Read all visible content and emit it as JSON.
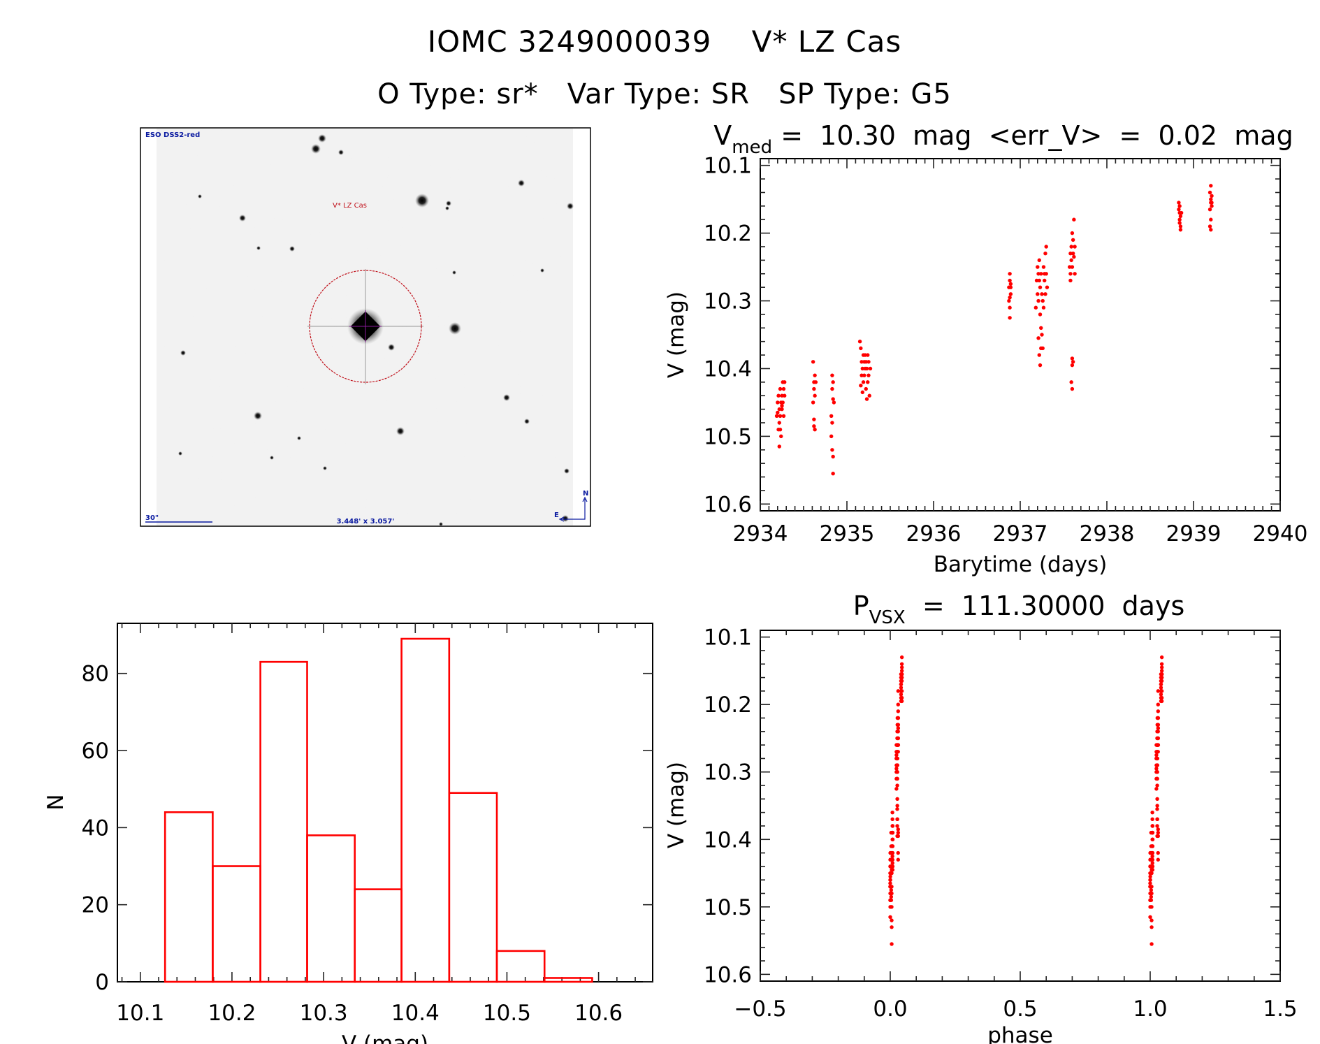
{
  "header": {
    "title": "IOMC 3249000039    V* LZ Cas",
    "subtitle": "O Type: sr*   Var Type: SR   SP Type: G5"
  },
  "finder_chart": {
    "survey_label": "ESO DSS2-red",
    "target_label": "V* LZ Cas",
    "scale_label": "30\"",
    "field_size_label": "3.448' x 3.057'",
    "north_label": "N",
    "east_label": "E",
    "colors": {
      "overlay_red": "#c0101a",
      "overlay_blue": "#0a1aa0"
    }
  },
  "light_curve": {
    "title_main": "V",
    "title_sub": "med",
    "title_rest": " =  10.30  mag  <err_V>  =  0.02  mag",
    "xlabel": "Barytime (days)",
    "ylabel": "V (mag)"
  },
  "histogram": {
    "xlabel": "V (mag)",
    "ylabel": "N"
  },
  "phase_plot": {
    "title_main": "P",
    "title_sub": "VSX",
    "title_rest": "  =  111.30000  days",
    "xlabel": "phase",
    "ylabel": "V (mag)"
  },
  "chart_data": [
    {
      "type": "scatter",
      "name": "light_curve",
      "title": "V_med = 10.30 mag <err_V> = 0.02 mag",
      "xlabel": "Barytime (days)",
      "ylabel": "V (mag)",
      "xlim": [
        2934,
        2940
      ],
      "ylim": [
        10.09,
        10.61
      ],
      "y_inverted": true,
      "x_ticks": [
        "2934",
        "2935",
        "2936",
        "2937",
        "2938",
        "2939",
        "2940"
      ],
      "y_ticks": [
        "10.1",
        "10.2",
        "10.3",
        "10.4",
        "10.5",
        "10.6"
      ],
      "grid": false,
      "marker_color": "#ff0000",
      "points": [
        [
          2934.19,
          10.47
        ],
        [
          2934.2,
          10.45
        ],
        [
          2934.21,
          10.49
        ],
        [
          2934.21,
          10.44
        ],
        [
          2934.22,
          10.46
        ],
        [
          2934.22,
          10.48
        ],
        [
          2934.23,
          10.43
        ],
        [
          2934.23,
          10.47
        ],
        [
          2934.24,
          10.45
        ],
        [
          2934.24,
          10.5
        ],
        [
          2934.25,
          10.44
        ],
        [
          2934.25,
          10.46
        ],
        [
          2934.26,
          10.42
        ],
        [
          2934.26,
          10.45
        ],
        [
          2934.27,
          10.43
        ],
        [
          2934.27,
          10.47
        ],
        [
          2934.28,
          10.44
        ],
        [
          2934.28,
          10.42
        ],
        [
          2934.22,
          10.515
        ],
        [
          2934.23,
          10.49
        ],
        [
          2934.2,
          10.465
        ],
        [
          2934.25,
          10.455
        ],
        [
          2934.61,
          10.39
        ],
        [
          2934.62,
          10.42
        ],
        [
          2934.62,
          10.43
        ],
        [
          2934.63,
          10.41
        ],
        [
          2934.63,
          10.44
        ],
        [
          2934.61,
          10.45
        ],
        [
          2934.62,
          10.475
        ],
        [
          2934.62,
          10.485
        ],
        [
          2934.63,
          10.49
        ],
        [
          2934.64,
          10.42
        ],
        [
          2934.83,
          10.41
        ],
        [
          2934.84,
          10.42
        ],
        [
          2934.83,
          10.43
        ],
        [
          2934.84,
          10.445
        ],
        [
          2934.82,
          10.47
        ],
        [
          2934.83,
          10.48
        ],
        [
          2934.82,
          10.5
        ],
        [
          2934.83,
          10.52
        ],
        [
          2934.84,
          10.53
        ],
        [
          2934.84,
          10.555
        ],
        [
          2934.85,
          10.45
        ],
        [
          2935.15,
          10.36
        ],
        [
          2935.16,
          10.37
        ],
        [
          2935.17,
          10.39
        ],
        [
          2935.17,
          10.41
        ],
        [
          2935.18,
          10.4
        ],
        [
          2935.19,
          10.38
        ],
        [
          2935.19,
          10.42
        ],
        [
          2935.2,
          10.39
        ],
        [
          2935.2,
          10.41
        ],
        [
          2935.21,
          10.4
        ],
        [
          2935.21,
          10.38
        ],
        [
          2935.22,
          10.43
        ],
        [
          2935.22,
          10.39
        ],
        [
          2935.23,
          10.4
        ],
        [
          2935.24,
          10.38
        ],
        [
          2935.24,
          10.42
        ],
        [
          2935.25,
          10.39
        ],
        [
          2935.25,
          10.41
        ],
        [
          2935.26,
          10.44
        ],
        [
          2935.27,
          10.4
        ],
        [
          2935.18,
          10.435
        ],
        [
          2935.23,
          10.445
        ],
        [
          2935.16,
          10.425
        ],
        [
          2936.87,
          10.28
        ],
        [
          2936.88,
          10.26
        ],
        [
          2936.88,
          10.27
        ],
        [
          2936.89,
          10.29
        ],
        [
          2936.87,
          10.3
        ],
        [
          2936.88,
          10.295
        ],
        [
          2936.89,
          10.28
        ],
        [
          2936.88,
          10.31
        ],
        [
          2936.89,
          10.275
        ],
        [
          2936.88,
          10.325
        ],
        [
          2937.18,
          10.31
        ],
        [
          2937.19,
          10.27
        ],
        [
          2937.2,
          10.25
        ],
        [
          2937.2,
          10.29
        ],
        [
          2937.21,
          10.26
        ],
        [
          2937.21,
          10.3
        ],
        [
          2937.22,
          10.24
        ],
        [
          2937.22,
          10.27
        ],
        [
          2937.23,
          10.28
        ],
        [
          2937.23,
          10.32
        ],
        [
          2937.24,
          10.26
        ],
        [
          2937.24,
          10.34
        ],
        [
          2937.25,
          10.35
        ],
        [
          2937.25,
          10.29
        ],
        [
          2937.26,
          10.3
        ],
        [
          2937.26,
          10.37
        ],
        [
          2937.27,
          10.25
        ],
        [
          2937.27,
          10.31
        ],
        [
          2937.28,
          10.27
        ],
        [
          2937.28,
          10.26
        ],
        [
          2937.29,
          10.29
        ],
        [
          2937.29,
          10.23
        ],
        [
          2937.3,
          10.22
        ],
        [
          2937.3,
          10.26
        ],
        [
          2937.31,
          10.28
        ],
        [
          2937.22,
          10.38
        ],
        [
          2937.23,
          10.395
        ],
        [
          2937.24,
          10.37
        ],
        [
          2937.21,
          10.355
        ],
        [
          2937.57,
          10.25
        ],
        [
          2937.58,
          10.23
        ],
        [
          2937.58,
          10.26
        ],
        [
          2937.59,
          10.22
        ],
        [
          2937.59,
          10.24
        ],
        [
          2937.6,
          10.2
        ],
        [
          2937.6,
          10.25
        ],
        [
          2937.61,
          10.23
        ],
        [
          2937.61,
          10.21
        ],
        [
          2937.62,
          10.235
        ],
        [
          2937.62,
          10.18
        ],
        [
          2937.63,
          10.26
        ],
        [
          2937.63,
          10.22
        ],
        [
          2937.58,
          10.27
        ],
        [
          2937.6,
          10.385
        ],
        [
          2937.61,
          10.39
        ],
        [
          2937.6,
          10.395
        ],
        [
          2937.59,
          10.42
        ],
        [
          2937.6,
          10.43
        ],
        [
          2938.83,
          10.165
        ],
        [
          2938.84,
          10.16
        ],
        [
          2938.84,
          10.17
        ],
        [
          2938.85,
          10.175
        ],
        [
          2938.84,
          10.18
        ],
        [
          2938.85,
          10.19
        ],
        [
          2938.84,
          10.185
        ],
        [
          2938.85,
          10.195
        ],
        [
          2938.83,
          10.155
        ],
        [
          2938.86,
          10.17
        ],
        [
          2939.19,
          10.14
        ],
        [
          2939.2,
          10.13
        ],
        [
          2939.2,
          10.15
        ],
        [
          2939.21,
          10.145
        ],
        [
          2939.2,
          10.155
        ],
        [
          2939.21,
          10.16
        ],
        [
          2939.19,
          10.165
        ],
        [
          2939.2,
          10.18
        ],
        [
          2939.21,
          10.155
        ],
        [
          2939.19,
          10.19
        ],
        [
          2939.2,
          10.195
        ]
      ]
    },
    {
      "type": "bar",
      "name": "histogram",
      "xlabel": "V (mag)",
      "ylabel": "N",
      "xlim": [
        10.075,
        10.659
      ],
      "ylim": [
        0,
        93
      ],
      "x_ticks": [
        "10.1",
        "10.2",
        "10.3",
        "10.4",
        "10.5",
        "10.6"
      ],
      "y_ticks": [
        "0",
        "20",
        "40",
        "60",
        "80"
      ],
      "grid": false,
      "bar_color": "#ff0000",
      "bin_edges": [
        10.127,
        10.179,
        10.231,
        10.282,
        10.334,
        10.385,
        10.437,
        10.489,
        10.541,
        10.593
      ],
      "counts": [
        44,
        30,
        83,
        38,
        24,
        89,
        49,
        8,
        1
      ]
    },
    {
      "type": "scatter",
      "name": "phase_plot",
      "title": "P_VSX = 111.30000 days",
      "period_days": 111.3,
      "xlabel": "phase",
      "ylabel": "V (mag)",
      "xlim": [
        -0.5,
        1.5
      ],
      "ylim": [
        10.09,
        10.61
      ],
      "y_inverted": true,
      "x_ticks": [
        "−0.5",
        "0.0",
        "0.5",
        "1.0",
        "1.5"
      ],
      "y_ticks": [
        "10.1",
        "10.2",
        "10.3",
        "10.4",
        "10.5",
        "10.6"
      ],
      "grid": false,
      "marker_color": "#ff0000",
      "source": "light_curve points folded on period, shown at phase and phase+1"
    }
  ]
}
